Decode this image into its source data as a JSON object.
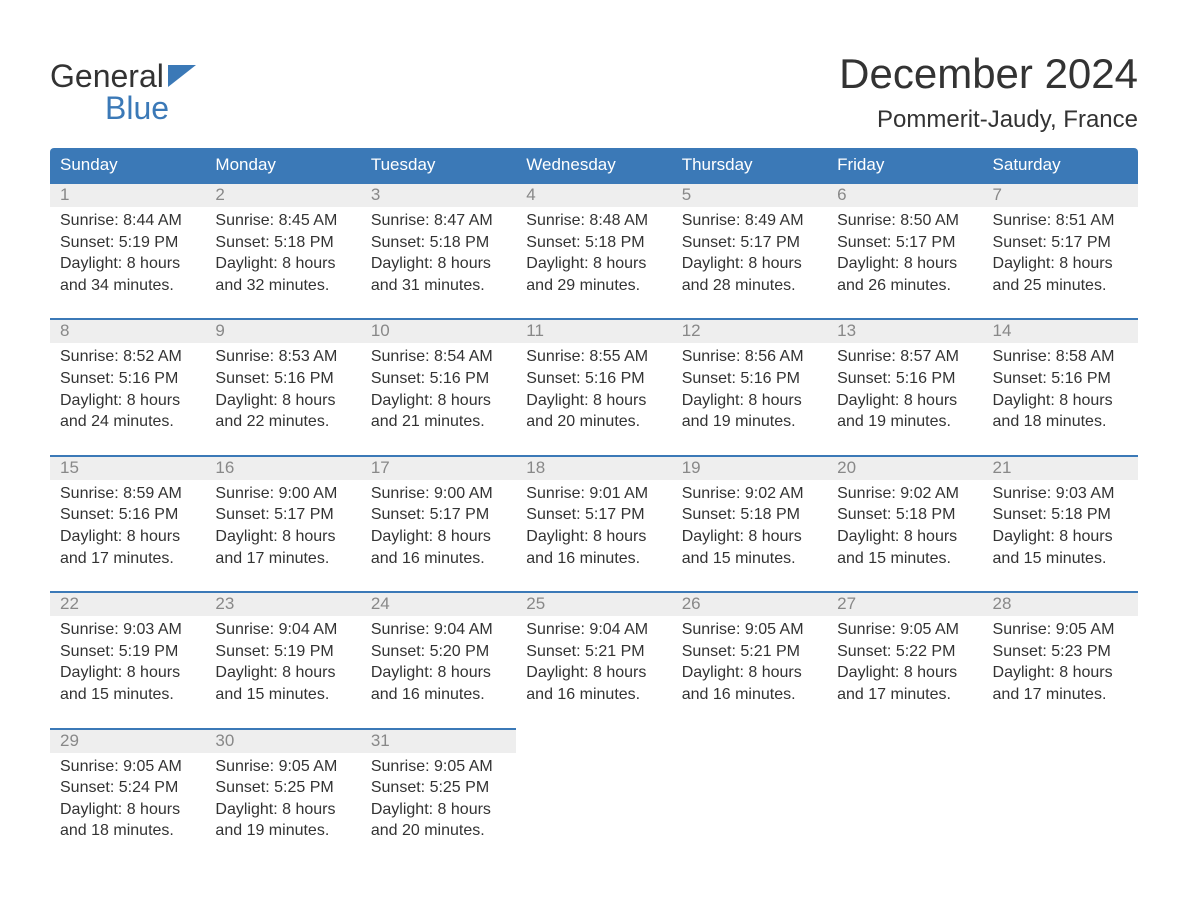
{
  "logo": {
    "word1": "General",
    "word2": "Blue"
  },
  "title": "December 2024",
  "subtitle": "Pommerit-Jaudy, France",
  "colors": {
    "primary": "#3b79b7",
    "header_text": "#ffffff",
    "day_num_bg": "#eeeeee",
    "day_num_fg": "#888888",
    "text": "#333333",
    "background": "#ffffff"
  },
  "day_names": [
    "Sunday",
    "Monday",
    "Tuesday",
    "Wednesday",
    "Thursday",
    "Friday",
    "Saturday"
  ],
  "weeks": [
    [
      {
        "n": "1",
        "sunrise": "8:44 AM",
        "sunset": "5:19 PM",
        "daylight": "8 hours and 34 minutes."
      },
      {
        "n": "2",
        "sunrise": "8:45 AM",
        "sunset": "5:18 PM",
        "daylight": "8 hours and 32 minutes."
      },
      {
        "n": "3",
        "sunrise": "8:47 AM",
        "sunset": "5:18 PM",
        "daylight": "8 hours and 31 minutes."
      },
      {
        "n": "4",
        "sunrise": "8:48 AM",
        "sunset": "5:18 PM",
        "daylight": "8 hours and 29 minutes."
      },
      {
        "n": "5",
        "sunrise": "8:49 AM",
        "sunset": "5:17 PM",
        "daylight": "8 hours and 28 minutes."
      },
      {
        "n": "6",
        "sunrise": "8:50 AM",
        "sunset": "5:17 PM",
        "daylight": "8 hours and 26 minutes."
      },
      {
        "n": "7",
        "sunrise": "8:51 AM",
        "sunset": "5:17 PM",
        "daylight": "8 hours and 25 minutes."
      }
    ],
    [
      {
        "n": "8",
        "sunrise": "8:52 AM",
        "sunset": "5:16 PM",
        "daylight": "8 hours and 24 minutes."
      },
      {
        "n": "9",
        "sunrise": "8:53 AM",
        "sunset": "5:16 PM",
        "daylight": "8 hours and 22 minutes."
      },
      {
        "n": "10",
        "sunrise": "8:54 AM",
        "sunset": "5:16 PM",
        "daylight": "8 hours and 21 minutes."
      },
      {
        "n": "11",
        "sunrise": "8:55 AM",
        "sunset": "5:16 PM",
        "daylight": "8 hours and 20 minutes."
      },
      {
        "n": "12",
        "sunrise": "8:56 AM",
        "sunset": "5:16 PM",
        "daylight": "8 hours and 19 minutes."
      },
      {
        "n": "13",
        "sunrise": "8:57 AM",
        "sunset": "5:16 PM",
        "daylight": "8 hours and 19 minutes."
      },
      {
        "n": "14",
        "sunrise": "8:58 AM",
        "sunset": "5:16 PM",
        "daylight": "8 hours and 18 minutes."
      }
    ],
    [
      {
        "n": "15",
        "sunrise": "8:59 AM",
        "sunset": "5:16 PM",
        "daylight": "8 hours and 17 minutes."
      },
      {
        "n": "16",
        "sunrise": "9:00 AM",
        "sunset": "5:17 PM",
        "daylight": "8 hours and 17 minutes."
      },
      {
        "n": "17",
        "sunrise": "9:00 AM",
        "sunset": "5:17 PM",
        "daylight": "8 hours and 16 minutes."
      },
      {
        "n": "18",
        "sunrise": "9:01 AM",
        "sunset": "5:17 PM",
        "daylight": "8 hours and 16 minutes."
      },
      {
        "n": "19",
        "sunrise": "9:02 AM",
        "sunset": "5:18 PM",
        "daylight": "8 hours and 15 minutes."
      },
      {
        "n": "20",
        "sunrise": "9:02 AM",
        "sunset": "5:18 PM",
        "daylight": "8 hours and 15 minutes."
      },
      {
        "n": "21",
        "sunrise": "9:03 AM",
        "sunset": "5:18 PM",
        "daylight": "8 hours and 15 minutes."
      }
    ],
    [
      {
        "n": "22",
        "sunrise": "9:03 AM",
        "sunset": "5:19 PM",
        "daylight": "8 hours and 15 minutes."
      },
      {
        "n": "23",
        "sunrise": "9:04 AM",
        "sunset": "5:19 PM",
        "daylight": "8 hours and 15 minutes."
      },
      {
        "n": "24",
        "sunrise": "9:04 AM",
        "sunset": "5:20 PM",
        "daylight": "8 hours and 16 minutes."
      },
      {
        "n": "25",
        "sunrise": "9:04 AM",
        "sunset": "5:21 PM",
        "daylight": "8 hours and 16 minutes."
      },
      {
        "n": "26",
        "sunrise": "9:05 AM",
        "sunset": "5:21 PM",
        "daylight": "8 hours and 16 minutes."
      },
      {
        "n": "27",
        "sunrise": "9:05 AM",
        "sunset": "5:22 PM",
        "daylight": "8 hours and 17 minutes."
      },
      {
        "n": "28",
        "sunrise": "9:05 AM",
        "sunset": "5:23 PM",
        "daylight": "8 hours and 17 minutes."
      }
    ],
    [
      {
        "n": "29",
        "sunrise": "9:05 AM",
        "sunset": "5:24 PM",
        "daylight": "8 hours and 18 minutes."
      },
      {
        "n": "30",
        "sunrise": "9:05 AM",
        "sunset": "5:25 PM",
        "daylight": "8 hours and 19 minutes."
      },
      {
        "n": "31",
        "sunrise": "9:05 AM",
        "sunset": "5:25 PM",
        "daylight": "8 hours and 20 minutes."
      },
      null,
      null,
      null,
      null
    ]
  ],
  "labels": {
    "sunrise": "Sunrise:",
    "sunset": "Sunset:",
    "daylight": "Daylight:"
  }
}
